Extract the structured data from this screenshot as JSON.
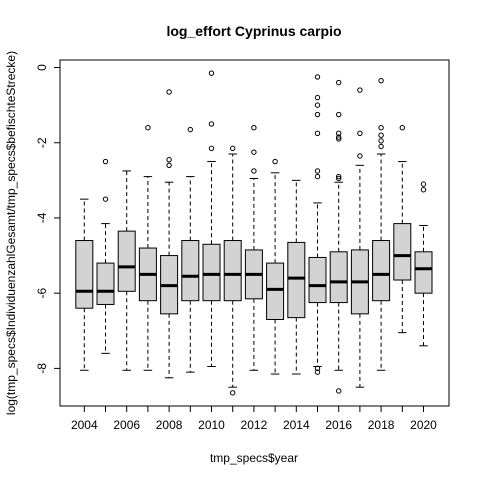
{
  "chart_data": {
    "type": "boxplot",
    "title": "log_effort Cyprinus carpio",
    "xlabel": "tmp_specs$year",
    "ylabel": "log(tmp_specs$IndividuenzahlGesamt/tmp_specs$befischteStrecke)",
    "ylim": [
      -9,
      0.2
    ],
    "yticks": [
      -8,
      -6,
      -4,
      -2,
      0
    ],
    "xtick_labels": [
      "2004",
      "2006",
      "2008",
      "2010",
      "2012",
      "2014",
      "2016",
      "2018",
      "2020"
    ],
    "box_fill": "#d3d3d3",
    "categories": [
      "2004",
      "2005",
      "2006",
      "2007",
      "2008",
      "2009",
      "2010",
      "2011",
      "2012",
      "2013",
      "2014",
      "2015",
      "2016",
      "2017",
      "2018",
      "2019",
      "2020"
    ],
    "boxes": [
      {
        "year": "2004",
        "whisker_low": -8.05,
        "q1": -6.4,
        "median": -5.95,
        "q3": -4.6,
        "whisker_high": -3.5,
        "outliers": []
      },
      {
        "year": "2005",
        "whisker_low": -7.6,
        "q1": -6.3,
        "median": -5.95,
        "q3": -5.2,
        "whisker_high": -4.15,
        "outliers": [
          -3.5,
          -2.5
        ]
      },
      {
        "year": "2006",
        "whisker_low": -8.05,
        "q1": -5.95,
        "median": -5.3,
        "q3": -4.35,
        "whisker_high": -2.75,
        "outliers": []
      },
      {
        "year": "2007",
        "whisker_low": -8.05,
        "q1": -6.2,
        "median": -5.5,
        "q3": -4.8,
        "whisker_high": -2.9,
        "outliers": [
          -1.6
        ]
      },
      {
        "year": "2008",
        "whisker_low": -8.25,
        "q1": -6.55,
        "median": -5.8,
        "q3": -5.0,
        "whisker_high": -3.05,
        "outliers": [
          -2.6,
          -2.45,
          -0.65
        ]
      },
      {
        "year": "2009",
        "whisker_low": -8.1,
        "q1": -6.2,
        "median": -5.55,
        "q3": -4.6,
        "whisker_high": -2.9,
        "outliers": [
          -1.65
        ]
      },
      {
        "year": "2010",
        "whisker_low": -7.95,
        "q1": -6.2,
        "median": -5.5,
        "q3": -4.7,
        "whisker_high": -2.5,
        "outliers": [
          -2.15,
          -1.5,
          -0.15
        ]
      },
      {
        "year": "2011",
        "whisker_low": -8.5,
        "q1": -6.2,
        "median": -5.5,
        "q3": -4.6,
        "whisker_high": -2.3,
        "outliers": [
          -8.65,
          -2.15
        ]
      },
      {
        "year": "2012",
        "whisker_low": -8.05,
        "q1": -6.15,
        "median": -5.5,
        "q3": -4.85,
        "whisker_high": -2.95,
        "outliers": [
          -2.75,
          -2.25,
          -1.6
        ]
      },
      {
        "year": "2013",
        "whisker_low": -8.15,
        "q1": -6.7,
        "median": -5.9,
        "q3": -5.2,
        "whisker_high": -2.8,
        "outliers": [
          -2.5
        ]
      },
      {
        "year": "2014",
        "whisker_low": -8.15,
        "q1": -6.65,
        "median": -5.6,
        "q3": -4.65,
        "whisker_high": -3.0,
        "outliers": []
      },
      {
        "year": "2015",
        "whisker_low": -7.95,
        "q1": -6.25,
        "median": -5.8,
        "q3": -5.05,
        "whisker_high": -3.6,
        "outliers": [
          -8.1,
          -8.0,
          -2.9,
          -2.75,
          -1.75,
          -1.25,
          -1.0,
          -0.8,
          -0.25
        ]
      },
      {
        "year": "2016",
        "whisker_low": -8.05,
        "q1": -6.25,
        "median": -5.7,
        "q3": -4.9,
        "whisker_high": -3.05,
        "outliers": [
          -8.6,
          -2.95,
          -2.9,
          -1.9,
          -1.85,
          -1.75,
          -1.25,
          -0.4
        ]
      },
      {
        "year": "2017",
        "whisker_low": -8.5,
        "q1": -6.55,
        "median": -5.7,
        "q3": -4.85,
        "whisker_high": -2.6,
        "outliers": [
          -2.35,
          -1.75,
          -0.6
        ]
      },
      {
        "year": "2018",
        "whisker_low": -8.05,
        "q1": -6.2,
        "median": -5.5,
        "q3": -4.6,
        "whisker_high": -2.3,
        "outliers": [
          -2.1,
          -1.95,
          -1.8,
          -1.6,
          -0.35
        ]
      },
      {
        "year": "2019",
        "whisker_low": -7.05,
        "q1": -5.65,
        "median": -5.0,
        "q3": -4.15,
        "whisker_high": -2.5,
        "outliers": [
          -1.6
        ]
      },
      {
        "year": "2020",
        "whisker_low": -7.4,
        "q1": -6.0,
        "median": -5.35,
        "q3": -4.9,
        "whisker_high": -4.2,
        "outliers": [
          -3.25,
          -3.1
        ]
      }
    ]
  }
}
